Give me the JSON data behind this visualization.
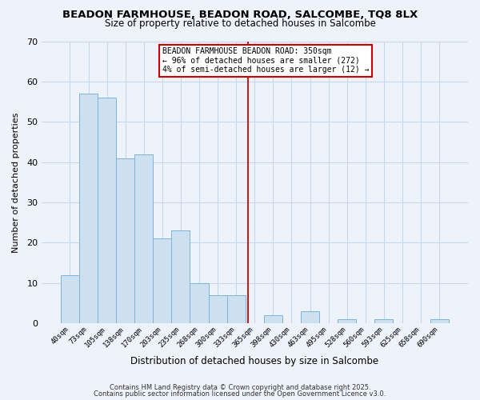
{
  "title_line1": "BEADON FARMHOUSE, BEADON ROAD, SALCOMBE, TQ8 8LX",
  "title_line2": "Size of property relative to detached houses in Salcombe",
  "xlabel": "Distribution of detached houses by size in Salcombe",
  "ylabel": "Number of detached properties",
  "bar_values": [
    12,
    57,
    56,
    41,
    42,
    21,
    23,
    10,
    7,
    7,
    0,
    2,
    0,
    3,
    0,
    1,
    0,
    1,
    0,
    0,
    1
  ],
  "bin_labels": [
    "40sqm",
    "73sqm",
    "105sqm",
    "138sqm",
    "170sqm",
    "203sqm",
    "235sqm",
    "268sqm",
    "300sqm",
    "333sqm",
    "365sqm",
    "398sqm",
    "430sqm",
    "463sqm",
    "495sqm",
    "528sqm",
    "560sqm",
    "593sqm",
    "625sqm",
    "658sqm",
    "690sqm"
  ],
  "bar_color": "#cce0f0",
  "bar_edge_color": "#7fb4d8",
  "grid_color": "#c8d8ec",
  "background_color": "#eef2fa",
  "vline_x": 9.65,
  "vline_color": "#cc0000",
  "annotation_text": "BEADON FARMHOUSE BEADON ROAD: 350sqm\n← 96% of detached houses are smaller (272)\n4% of semi-detached houses are larger (12) →",
  "annotation_box_color": "#ffffff",
  "annotation_box_edge": "#cc0000",
  "ylim": [
    0,
    70
  ],
  "yticks": [
    0,
    10,
    20,
    30,
    40,
    50,
    60,
    70
  ],
  "footer_line1": "Contains HM Land Registry data © Crown copyright and database right 2025.",
  "footer_line2": "Contains public sector information licensed under the Open Government Licence v3.0."
}
